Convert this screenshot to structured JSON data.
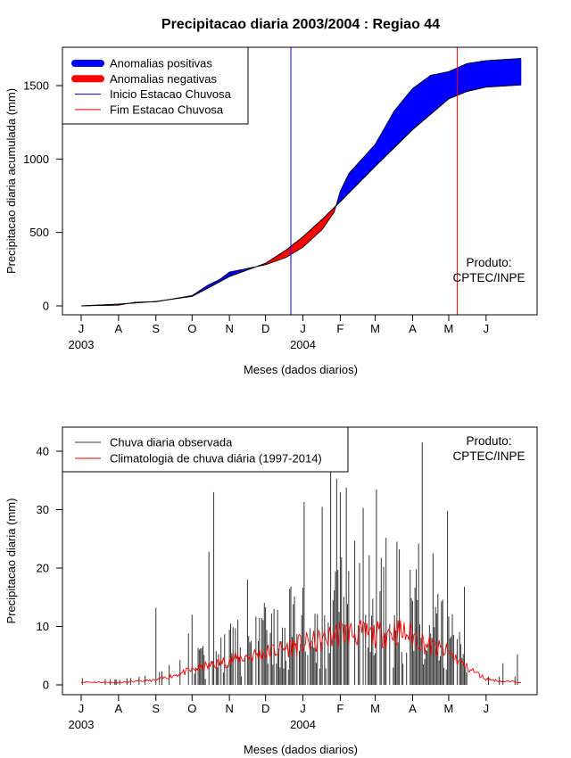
{
  "figure_title": "Precipitacao diaria 2003/2004 : Regiao 44",
  "product_label_1": "Produto:",
  "product_label_2": "CPTEC/INPE",
  "chart_data": [
    {
      "type": "area",
      "name": "cumulative",
      "ylabel": "Precipitacao diaria acumulada (mm)",
      "xlabel": "Meses (dados diarios)",
      "ylim": [
        0,
        1700
      ],
      "yticks": [
        0,
        500,
        1000,
        1500
      ],
      "x_range_days": [
        0,
        365
      ],
      "month_ticks": [
        {
          "day": 0,
          "label": "J"
        },
        {
          "day": 31,
          "label": "A"
        },
        {
          "day": 62,
          "label": "S"
        },
        {
          "day": 92,
          "label": "O"
        },
        {
          "day": 123,
          "label": "N"
        },
        {
          "day": 153,
          "label": "D"
        },
        {
          "day": 184,
          "label": "J"
        },
        {
          "day": 215,
          "label": "F"
        },
        {
          "day": 244,
          "label": "M"
        },
        {
          "day": 275,
          "label": "A"
        },
        {
          "day": 305,
          "label": "M"
        },
        {
          "day": 336,
          "label": "J"
        }
      ],
      "year_labels": [
        {
          "day": 0,
          "label": "2003"
        },
        {
          "day": 184,
          "label": "2004"
        }
      ],
      "legend": [
        {
          "label": "Anomalias positivas",
          "color": "#0000ff",
          "style": "thick"
        },
        {
          "label": "Anomalias negativas",
          "color": "#ff0000",
          "style": "thick"
        },
        {
          "label": "Inicio Estacao Chuvosa",
          "color": "#0000ff",
          "style": "thin"
        },
        {
          "label": "Fim Estacao Chuvosa",
          "color": "#ff0000",
          "style": "thin"
        }
      ],
      "rain_season_start_day": 174,
      "rain_season_end_day": 312,
      "climatology_cumulative": {
        "days": [
          0,
          31,
          62,
          92,
          105,
          123,
          153,
          170,
          184,
          200,
          215,
          244,
          275,
          305,
          320,
          336,
          365
        ],
        "values": [
          0,
          12,
          30,
          65,
          120,
          200,
          290,
          380,
          470,
          590,
          710,
          950,
          1200,
          1410,
          1460,
          1490,
          1505
        ]
      },
      "observed_cumulative": {
        "days": [
          0,
          31,
          45,
          62,
          92,
          105,
          115,
          123,
          153,
          170,
          184,
          200,
          210,
          215,
          222,
          244,
          260,
          275,
          290,
          305,
          312,
          320,
          336,
          365
        ],
        "values": [
          0,
          5,
          25,
          28,
          70,
          140,
          180,
          230,
          280,
          330,
          400,
          520,
          640,
          780,
          900,
          1100,
          1330,
          1480,
          1570,
          1595,
          1620,
          1650,
          1670,
          1685
        ]
      }
    },
    {
      "type": "bar",
      "name": "daily",
      "ylabel": "Precipitacao diaria (mm)",
      "xlabel": "Meses (dados diarios)",
      "ylim": [
        0,
        43
      ],
      "yticks": [
        0,
        10,
        20,
        30,
        40
      ],
      "x_range_days": [
        0,
        365
      ],
      "legend": [
        {
          "label": "Chuva diaria observada",
          "color": "#333333"
        },
        {
          "label": "Climatologia de chuva diária (1997-2014)",
          "color": "#ff0000"
        }
      ],
      "observed_peaks": [
        {
          "day": 62,
          "value": 13.2
        },
        {
          "day": 92,
          "value": 12.0
        },
        {
          "day": 106,
          "value": 22.8
        },
        {
          "day": 110,
          "value": 33.0
        },
        {
          "day": 124,
          "value": 10.5
        },
        {
          "day": 138,
          "value": 18.0
        },
        {
          "day": 160,
          "value": 13.0
        },
        {
          "day": 185,
          "value": 31.3
        },
        {
          "day": 200,
          "value": 30.5
        },
        {
          "day": 207,
          "value": 36.5
        },
        {
          "day": 212,
          "value": 35.3
        },
        {
          "day": 215,
          "value": 33.0
        },
        {
          "day": 220,
          "value": 33.8
        },
        {
          "day": 227,
          "value": 24.7
        },
        {
          "day": 234,
          "value": 30.3
        },
        {
          "day": 245,
          "value": 33.5
        },
        {
          "day": 253,
          "value": 25.2
        },
        {
          "day": 262,
          "value": 24.5
        },
        {
          "day": 280,
          "value": 24.2
        },
        {
          "day": 283,
          "value": 41.5
        },
        {
          "day": 292,
          "value": 22.5
        },
        {
          "day": 304,
          "value": 29.8
        },
        {
          "day": 318,
          "value": 16.8
        },
        {
          "day": 350,
          "value": 3.7
        },
        {
          "day": 362,
          "value": 5.2
        }
      ],
      "climatology_daily": {
        "days": [
          0,
          31,
          62,
          92,
          123,
          153,
          184,
          200,
          215,
          230,
          244,
          260,
          275,
          290,
          305,
          320,
          336,
          350,
          365
        ],
        "values": [
          0.5,
          0.4,
          0.8,
          2.5,
          4.2,
          5.5,
          7.0,
          7.5,
          9.0,
          8.8,
          8.5,
          9.2,
          8.5,
          6.5,
          5.5,
          3.0,
          1.0,
          0.6,
          0.5
        ]
      }
    }
  ]
}
